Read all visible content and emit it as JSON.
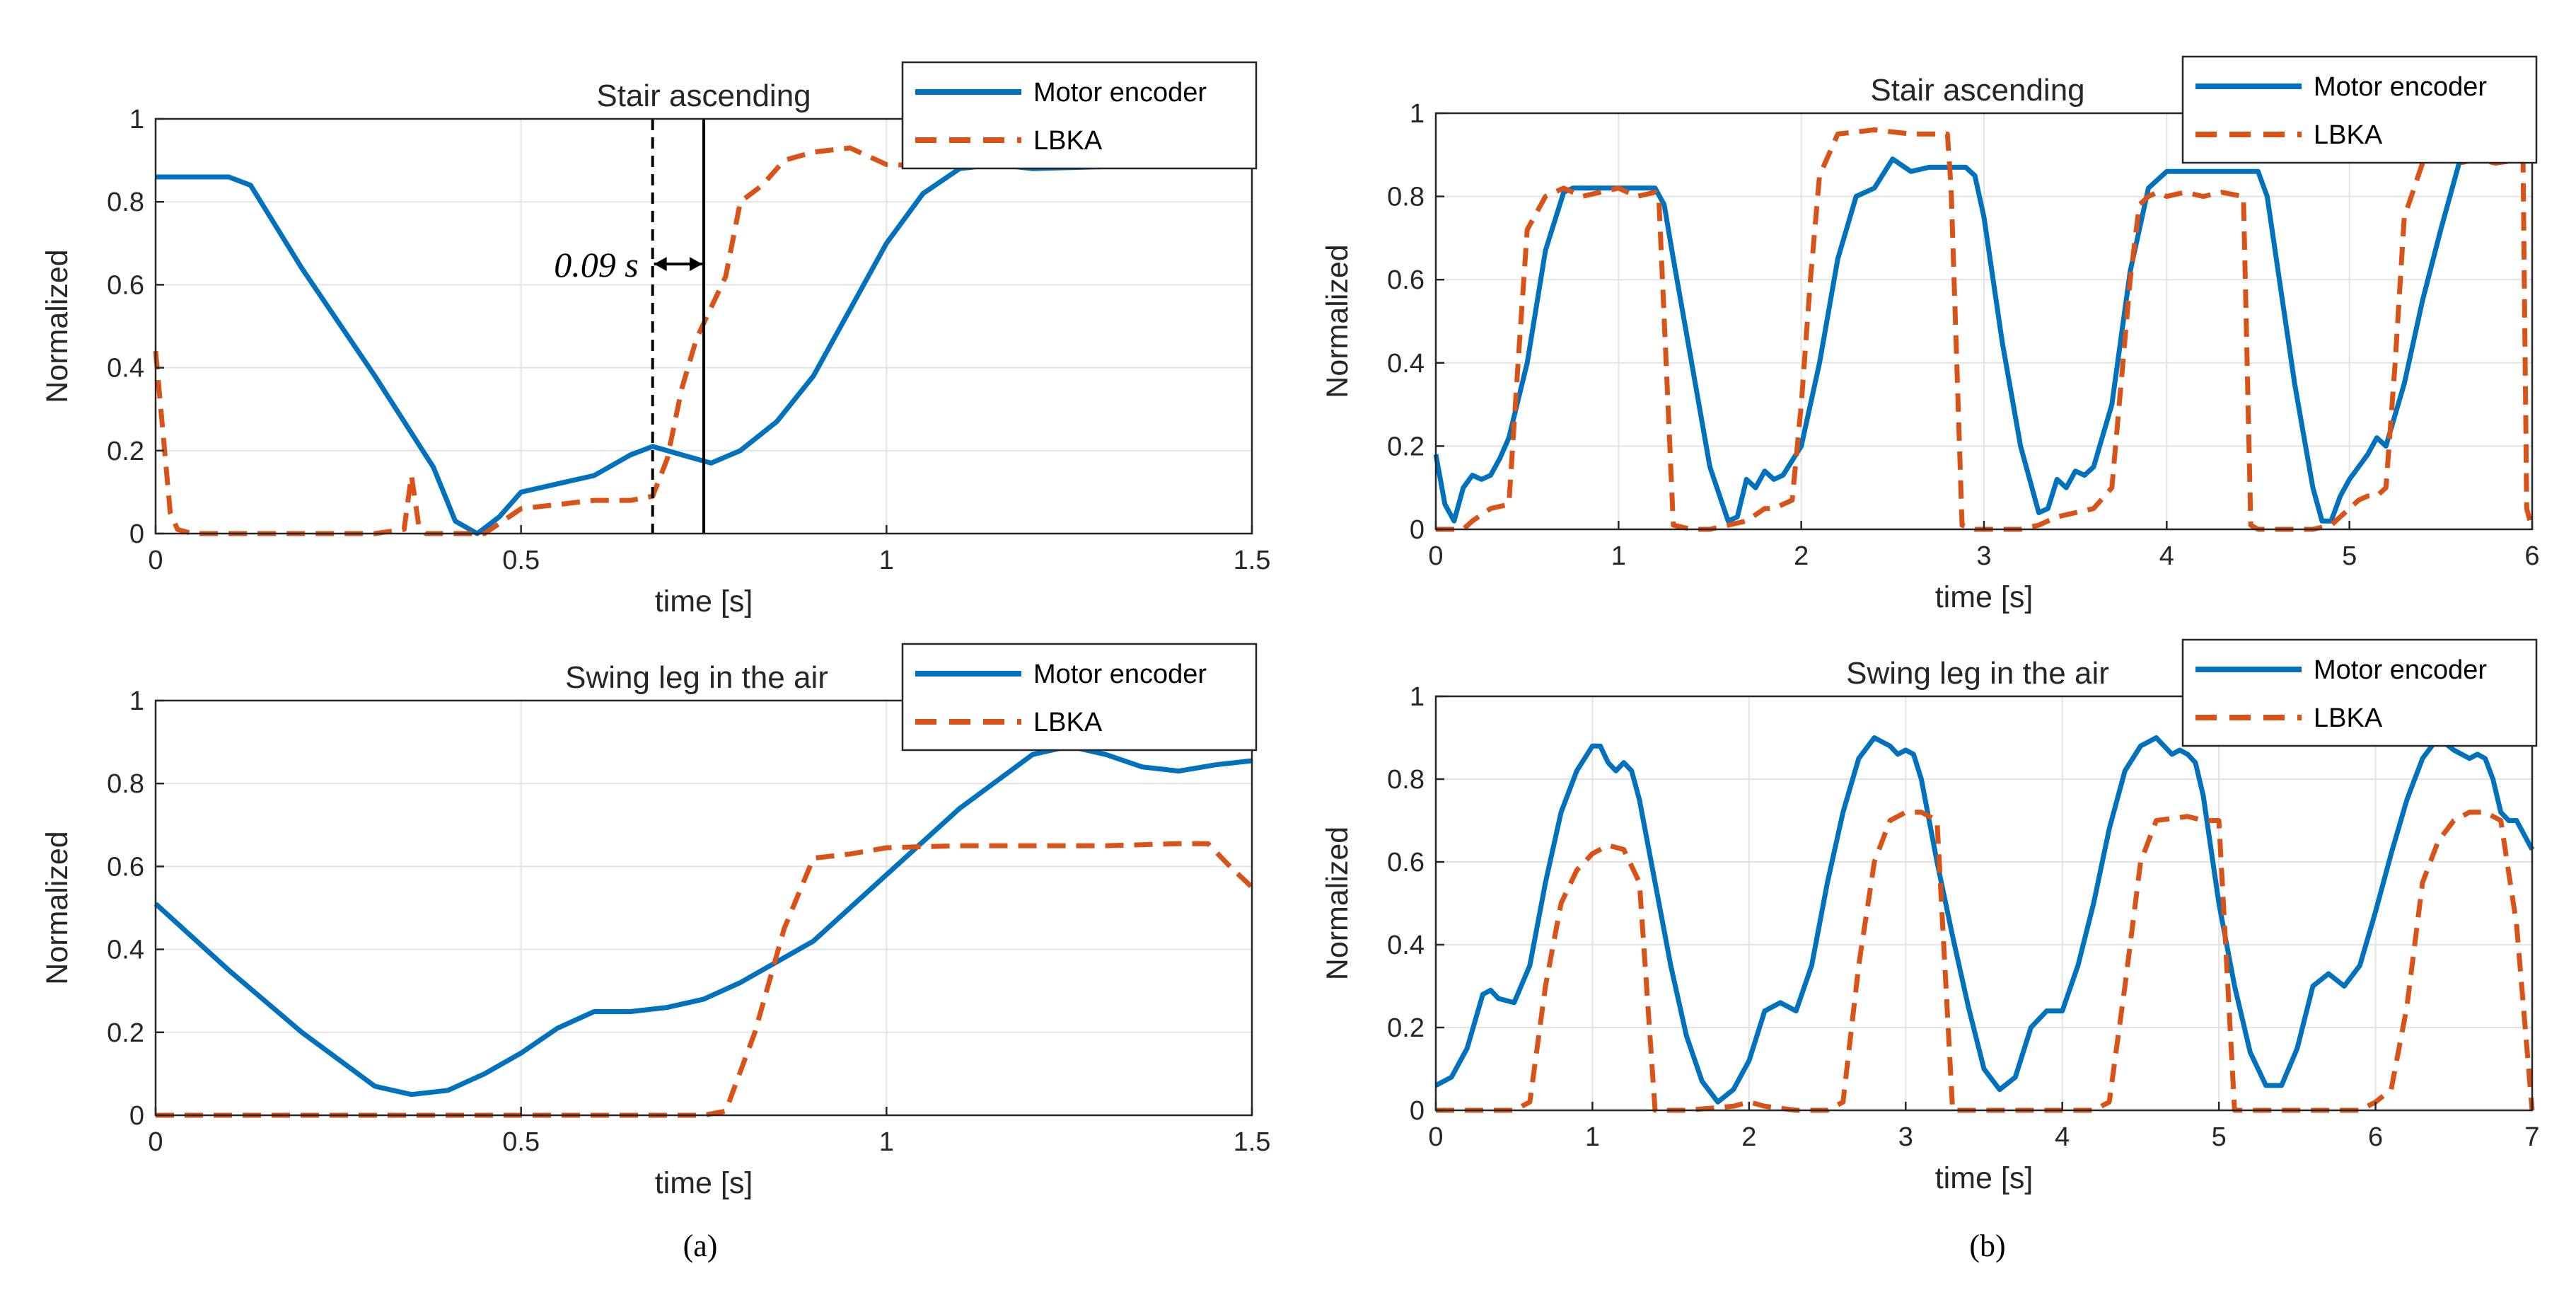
{
  "colors": {
    "encoder": "#0072BD",
    "lbka": "#D95319"
  },
  "captions": {
    "a": "(a)",
    "b": "(b)"
  },
  "chart_data": [
    {
      "id": "a_top",
      "type": "line",
      "title": "Stair ascending",
      "xlabel": "time [s]",
      "ylabel": "Normalized",
      "xlim": [
        0,
        1.5
      ],
      "ylim": [
        0,
        1
      ],
      "xticks": [
        {
          "v": 0,
          "label": "0"
        },
        {
          "v": 0.5,
          "label": "0.5"
        },
        {
          "v": 1,
          "label": "1"
        },
        {
          "v": 1.5,
          "label": "1.5"
        }
      ],
      "yticks": [
        {
          "v": 0,
          "label": "0"
        },
        {
          "v": 0.2,
          "label": "0.2"
        },
        {
          "v": 0.4,
          "label": "0.4"
        },
        {
          "v": 0.6,
          "label": "0.6"
        },
        {
          "v": 0.8,
          "label": "0.8"
        },
        {
          "v": 1,
          "label": "1"
        }
      ],
      "grid": true,
      "legend_position": "top-right",
      "annotation": {
        "text": "0.09 s",
        "x_start": 0.68,
        "x_end": 0.75,
        "y": 0.65
      },
      "series": [
        {
          "name": "Motor encoder",
          "style": "solid",
          "x": [
            0,
            0.1,
            0.13,
            0.2,
            0.3,
            0.38,
            0.41,
            0.44,
            0.47,
            0.5,
            0.55,
            0.6,
            0.65,
            0.68,
            0.72,
            0.76,
            0.8,
            0.85,
            0.9,
            0.95,
            1,
            1.05,
            1.1,
            1.15,
            1.2,
            1.3,
            1.4,
            1.5
          ],
          "y": [
            0.86,
            0.86,
            0.84,
            0.64,
            0.38,
            0.16,
            0.03,
            0.0,
            0.04,
            0.1,
            0.12,
            0.14,
            0.19,
            0.21,
            0.19,
            0.17,
            0.2,
            0.27,
            0.38,
            0.54,
            0.7,
            0.82,
            0.88,
            0.89,
            0.88,
            0.885,
            0.885,
            0.885
          ]
        },
        {
          "name": "LBKA",
          "style": "dashed",
          "x": [
            0,
            0.02,
            0.03,
            0.05,
            0.1,
            0.2,
            0.3,
            0.34,
            0.35,
            0.36,
            0.37,
            0.4,
            0.45,
            0.5,
            0.55,
            0.6,
            0.65,
            0.68,
            0.7,
            0.72,
            0.74,
            0.78,
            0.8,
            0.83,
            0.86,
            0.9,
            0.95,
            1,
            1.1,
            1.2,
            1.3,
            1.5
          ],
          "y": [
            0.44,
            0.05,
            0.01,
            0.0,
            0.0,
            0.0,
            0.0,
            0.01,
            0.14,
            0.02,
            0.0,
            0.0,
            0.0,
            0.06,
            0.07,
            0.08,
            0.08,
            0.09,
            0.18,
            0.35,
            0.47,
            0.62,
            0.8,
            0.84,
            0.9,
            0.92,
            0.93,
            0.89,
            0.885,
            0.885,
            0.885,
            0.885
          ]
        }
      ]
    },
    {
      "id": "a_bottom",
      "type": "line",
      "title": "Swing leg in the air",
      "xlabel": "time [s]",
      "ylabel": "Normalized",
      "xlim": [
        0,
        1.5
      ],
      "ylim": [
        0,
        1
      ],
      "xticks": [
        {
          "v": 0,
          "label": "0"
        },
        {
          "v": 0.5,
          "label": "0.5"
        },
        {
          "v": 1,
          "label": "1"
        },
        {
          "v": 1.5,
          "label": "1.5"
        }
      ],
      "yticks": [
        {
          "v": 0,
          "label": "0"
        },
        {
          "v": 0.2,
          "label": "0.2"
        },
        {
          "v": 0.4,
          "label": "0.4"
        },
        {
          "v": 0.6,
          "label": "0.6"
        },
        {
          "v": 0.8,
          "label": "0.8"
        },
        {
          "v": 1,
          "label": "1"
        }
      ],
      "grid": true,
      "legend_position": "top-right",
      "series": [
        {
          "name": "Motor encoder",
          "style": "solid",
          "x": [
            0,
            0.1,
            0.2,
            0.3,
            0.35,
            0.4,
            0.45,
            0.5,
            0.55,
            0.6,
            0.65,
            0.7,
            0.75,
            0.8,
            0.9,
            1,
            1.1,
            1.2,
            1.25,
            1.3,
            1.35,
            1.4,
            1.45,
            1.5
          ],
          "y": [
            0.51,
            0.35,
            0.2,
            0.07,
            0.05,
            0.06,
            0.1,
            0.15,
            0.21,
            0.25,
            0.25,
            0.26,
            0.28,
            0.32,
            0.42,
            0.58,
            0.74,
            0.87,
            0.89,
            0.87,
            0.84,
            0.83,
            0.845,
            0.855
          ]
        },
        {
          "name": "LBKA",
          "style": "dashed",
          "x": [
            0,
            0.5,
            0.75,
            0.78,
            0.82,
            0.86,
            0.9,
            0.95,
            1,
            1.1,
            1.2,
            1.3,
            1.4,
            1.44,
            1.47,
            1.5
          ],
          "y": [
            0.0,
            0.0,
            0.0,
            0.01,
            0.2,
            0.45,
            0.62,
            0.63,
            0.645,
            0.65,
            0.65,
            0.65,
            0.655,
            0.655,
            0.6,
            0.55
          ]
        }
      ]
    },
    {
      "id": "b_top",
      "type": "line",
      "title": "Stair ascending",
      "xlabel": "time [s]",
      "ylabel": "Normalized",
      "xlim": [
        0,
        6
      ],
      "ylim": [
        0,
        1
      ],
      "xticks": [
        {
          "v": 0,
          "label": "0"
        },
        {
          "v": 1,
          "label": "1"
        },
        {
          "v": 2,
          "label": "2"
        },
        {
          "v": 3,
          "label": "3"
        },
        {
          "v": 4,
          "label": "4"
        },
        {
          "v": 5,
          "label": "5"
        },
        {
          "v": 6,
          "label": "6"
        }
      ],
      "yticks": [
        {
          "v": 0,
          "label": "0"
        },
        {
          "v": 0.2,
          "label": "0.2"
        },
        {
          "v": 0.4,
          "label": "0.4"
        },
        {
          "v": 0.6,
          "label": "0.6"
        },
        {
          "v": 0.8,
          "label": "0.8"
        },
        {
          "v": 1,
          "label": "1"
        }
      ],
      "grid": true,
      "legend_position": "top-right",
      "series": [
        {
          "name": "Motor encoder",
          "style": "solid",
          "x": [
            0,
            0.05,
            0.1,
            0.15,
            0.2,
            0.25,
            0.3,
            0.35,
            0.4,
            0.5,
            0.6,
            0.7,
            0.75,
            0.8,
            1,
            1.2,
            1.25,
            1.3,
            1.4,
            1.5,
            1.6,
            1.65,
            1.7,
            1.75,
            1.8,
            1.85,
            1.9,
            2,
            2.1,
            2.2,
            2.3,
            2.4,
            2.5,
            2.6,
            2.7,
            2.9,
            2.95,
            3,
            3.1,
            3.2,
            3.3,
            3.35,
            3.4,
            3.45,
            3.5,
            3.55,
            3.6,
            3.7,
            3.8,
            3.9,
            4,
            4.1,
            4.5,
            4.55,
            4.6,
            4.7,
            4.8,
            4.85,
            4.9,
            4.95,
            5,
            5.1,
            5.15,
            5.2,
            5.3,
            5.4,
            5.5,
            5.6,
            5.7,
            5.8,
            6
          ],
          "y": [
            0.18,
            0.06,
            0.02,
            0.1,
            0.13,
            0.12,
            0.13,
            0.17,
            0.22,
            0.4,
            0.67,
            0.81,
            0.82,
            0.82,
            0.82,
            0.82,
            0.78,
            0.65,
            0.4,
            0.15,
            0.02,
            0.03,
            0.12,
            0.1,
            0.14,
            0.12,
            0.13,
            0.2,
            0.4,
            0.65,
            0.8,
            0.82,
            0.89,
            0.86,
            0.87,
            0.87,
            0.85,
            0.75,
            0.45,
            0.2,
            0.04,
            0.05,
            0.12,
            0.1,
            0.14,
            0.13,
            0.15,
            0.3,
            0.62,
            0.82,
            0.86,
            0.86,
            0.86,
            0.8,
            0.65,
            0.35,
            0.1,
            0.02,
            0.02,
            0.08,
            0.12,
            0.18,
            0.22,
            0.2,
            0.35,
            0.55,
            0.72,
            0.88,
            0.9,
            0.89,
            0.895
          ]
        },
        {
          "name": "LBKA",
          "style": "dashed",
          "x": [
            0,
            0.15,
            0.2,
            0.3,
            0.4,
            0.45,
            0.5,
            0.6,
            0.7,
            0.8,
            0.9,
            1,
            1.1,
            1.2,
            1.22,
            1.3,
            1.4,
            1.5,
            1.6,
            1.7,
            1.8,
            1.85,
            1.9,
            1.95,
            2,
            2.05,
            2.1,
            2.2,
            2.4,
            2.6,
            2.8,
            2.82,
            2.88,
            2.95,
            3.1,
            3.2,
            3.3,
            3.35,
            3.4,
            3.5,
            3.6,
            3.7,
            3.75,
            3.8,
            3.85,
            3.9,
            3.95,
            4,
            4.1,
            4.2,
            4.3,
            4.42,
            4.46,
            4.5,
            4.6,
            4.8,
            4.9,
            5,
            5.05,
            5.1,
            5.15,
            5.2,
            5.25,
            5.3,
            5.4,
            5.5,
            5.6,
            5.7,
            5.8,
            5.95,
            5.97,
            6
          ],
          "y": [
            0.0,
            0.0,
            0.02,
            0.05,
            0.06,
            0.4,
            0.72,
            0.8,
            0.82,
            0.8,
            0.81,
            0.82,
            0.8,
            0.81,
            0.8,
            0.01,
            0.0,
            0.0,
            0.01,
            0.02,
            0.05,
            0.05,
            0.06,
            0.07,
            0.3,
            0.6,
            0.85,
            0.95,
            0.96,
            0.95,
            0.95,
            0.82,
            0.01,
            0.0,
            0.0,
            0.0,
            0.01,
            0.02,
            0.03,
            0.04,
            0.05,
            0.1,
            0.35,
            0.6,
            0.78,
            0.8,
            0.81,
            0.8,
            0.81,
            0.8,
            0.81,
            0.8,
            0.01,
            0.0,
            0.0,
            0.0,
            0.01,
            0.05,
            0.07,
            0.08,
            0.08,
            0.1,
            0.4,
            0.75,
            0.88,
            0.89,
            0.88,
            0.89,
            0.88,
            0.89,
            0.05,
            0.0
          ]
        }
      ]
    },
    {
      "id": "b_bottom",
      "type": "line",
      "title": "Swing leg in the air",
      "xlabel": "time [s]",
      "ylabel": "Normalized",
      "xlim": [
        0,
        7
      ],
      "ylim": [
        0,
        1
      ],
      "xticks": [
        {
          "v": 0,
          "label": "0"
        },
        {
          "v": 1,
          "label": "1"
        },
        {
          "v": 2,
          "label": "2"
        },
        {
          "v": 3,
          "label": "3"
        },
        {
          "v": 4,
          "label": "4"
        },
        {
          "v": 5,
          "label": "5"
        },
        {
          "v": 6,
          "label": "6"
        },
        {
          "v": 7,
          "label": "7"
        }
      ],
      "yticks": [
        {
          "v": 0,
          "label": "0"
        },
        {
          "v": 0.2,
          "label": "0.2"
        },
        {
          "v": 0.4,
          "label": "0.4"
        },
        {
          "v": 0.6,
          "label": "0.6"
        },
        {
          "v": 0.8,
          "label": "0.8"
        },
        {
          "v": 1,
          "label": "1"
        }
      ],
      "grid": true,
      "legend_position": "top-right",
      "series": [
        {
          "name": "Motor encoder",
          "style": "solid",
          "x": [
            0,
            0.1,
            0.2,
            0.3,
            0.35,
            0.4,
            0.5,
            0.6,
            0.7,
            0.8,
            0.9,
            1,
            1.05,
            1.1,
            1.15,
            1.2,
            1.25,
            1.3,
            1.4,
            1.5,
            1.6,
            1.7,
            1.8,
            1.9,
            2,
            2.1,
            2.2,
            2.3,
            2.4,
            2.5,
            2.6,
            2.7,
            2.8,
            2.9,
            2.95,
            3,
            3.05,
            3.1,
            3.15,
            3.2,
            3.3,
            3.4,
            3.5,
            3.6,
            3.7,
            3.8,
            3.9,
            4,
            4.1,
            4.2,
            4.3,
            4.4,
            4.5,
            4.6,
            4.65,
            4.7,
            4.75,
            4.8,
            4.85,
            4.9,
            5,
            5.1,
            5.2,
            5.3,
            5.4,
            5.5,
            5.6,
            5.7,
            5.8,
            5.9,
            6,
            6.1,
            6.2,
            6.3,
            6.4,
            6.5,
            6.55,
            6.6,
            6.65,
            6.7,
            6.75,
            6.8,
            6.85,
            6.9,
            7
          ],
          "y": [
            0.06,
            0.08,
            0.15,
            0.28,
            0.29,
            0.27,
            0.26,
            0.35,
            0.55,
            0.72,
            0.82,
            0.88,
            0.88,
            0.84,
            0.82,
            0.84,
            0.82,
            0.75,
            0.55,
            0.35,
            0.18,
            0.07,
            0.02,
            0.05,
            0.12,
            0.24,
            0.26,
            0.24,
            0.35,
            0.55,
            0.72,
            0.85,
            0.9,
            0.88,
            0.86,
            0.87,
            0.86,
            0.8,
            0.7,
            0.6,
            0.42,
            0.25,
            0.1,
            0.05,
            0.08,
            0.2,
            0.24,
            0.24,
            0.35,
            0.5,
            0.68,
            0.82,
            0.88,
            0.9,
            0.88,
            0.86,
            0.87,
            0.86,
            0.84,
            0.76,
            0.5,
            0.3,
            0.14,
            0.06,
            0.06,
            0.15,
            0.3,
            0.33,
            0.3,
            0.35,
            0.48,
            0.62,
            0.75,
            0.85,
            0.9,
            0.87,
            0.86,
            0.85,
            0.86,
            0.85,
            0.8,
            0.72,
            0.7,
            0.7,
            0.63
          ]
        },
        {
          "name": "LBKA",
          "style": "dashed",
          "x": [
            0,
            0.5,
            0.6,
            0.7,
            0.8,
            0.9,
            1,
            1.1,
            1.2,
            1.3,
            1.4,
            1.6,
            1.9,
            2,
            2.1,
            2.3,
            2.5,
            2.6,
            2.7,
            2.8,
            2.9,
            3,
            3.1,
            3.2,
            3.3,
            3.5,
            3.8,
            4,
            4.2,
            4.3,
            4.4,
            4.5,
            4.6,
            4.8,
            4.9,
            5,
            5.1,
            5.3,
            5.6,
            5.9,
            6,
            6.1,
            6.2,
            6.3,
            6.4,
            6.5,
            6.6,
            6.7,
            6.8,
            6.9,
            7
          ],
          "y": [
            0.0,
            0.0,
            0.02,
            0.3,
            0.5,
            0.58,
            0.62,
            0.64,
            0.63,
            0.55,
            0.0,
            0.0,
            0.01,
            0.02,
            0.01,
            0.0,
            0.0,
            0.02,
            0.35,
            0.6,
            0.7,
            0.72,
            0.72,
            0.7,
            0.0,
            0.0,
            0.0,
            0.0,
            0.0,
            0.02,
            0.3,
            0.6,
            0.7,
            0.71,
            0.7,
            0.7,
            0.0,
            0.0,
            0.0,
            0.0,
            0.02,
            0.05,
            0.25,
            0.55,
            0.65,
            0.7,
            0.72,
            0.72,
            0.7,
            0.45,
            0.0
          ]
        }
      ]
    }
  ]
}
